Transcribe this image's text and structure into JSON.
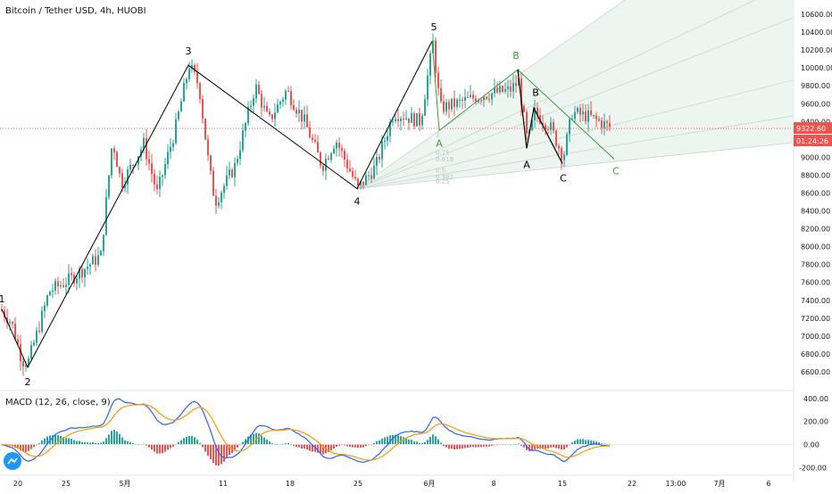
{
  "title": "Bitcoin / Tether USD, 4h, HUOBI",
  "macd_title": "MACD (12, 26, close, 9)",
  "price_label": "9322.60",
  "countdown_label": "01:24:26",
  "colors": {
    "up": "#26a69a",
    "down": "#ef5350",
    "wave_line": "#000000",
    "correction_line": "#3d9a3d",
    "price_line": "#ef5350",
    "macd_line": "#2962ff",
    "signal_line": "#ff9800",
    "fan_fill": "#e9f3ee",
    "fan_line": "#c8d6cf"
  },
  "wave_labels": [
    "1",
    "2",
    "3",
    "4",
    "5"
  ],
  "correction_labels": [
    "A",
    "B",
    "C",
    "A",
    "B",
    "C"
  ],
  "fan_levels": [
    "1",
    "0.75",
    "0.618",
    "0.5",
    "0.382",
    "0.25"
  ],
  "chart_data": [
    {
      "type": "candlestick",
      "title": "Bitcoin / Tether USD, 4h, HUOBI",
      "x_ticks": [
        "20",
        "25",
        "5月",
        "11",
        "18",
        "25",
        "6月",
        "8",
        "15",
        "22",
        "13:00",
        "7月",
        "6"
      ],
      "y_ticks": [
        6600,
        6800,
        7000,
        7200,
        7400,
        7600,
        7800,
        8000,
        8200,
        8400,
        8600,
        8800,
        9000,
        9200,
        9400,
        9600,
        9800,
        10000,
        10200,
        10400,
        10600
      ],
      "ylim": [
        6400,
        10760
      ],
      "last_price": 9322.6,
      "pivots": [
        {
          "label": "1",
          "price": 7300
        },
        {
          "label": "2",
          "price": 6650
        },
        {
          "label": "3",
          "price": 10030
        },
        {
          "label": "4",
          "price": 8650
        },
        {
          "label": "5",
          "price": 10300
        },
        {
          "label": "A",
          "price": 9300
        },
        {
          "label": "B",
          "price": 9980
        },
        {
          "label": "A",
          "price": 9100
        },
        {
          "label": "B",
          "price": 9550
        },
        {
          "label": "C",
          "price": 8930
        },
        {
          "label": "C",
          "price": 8980
        }
      ],
      "grid": false
    },
    {
      "type": "line",
      "title": "MACD (12, 26, close, 9)",
      "y_ticks": [
        -200,
        0,
        200,
        400
      ],
      "ylim": [
        -260,
        460
      ]
    }
  ]
}
